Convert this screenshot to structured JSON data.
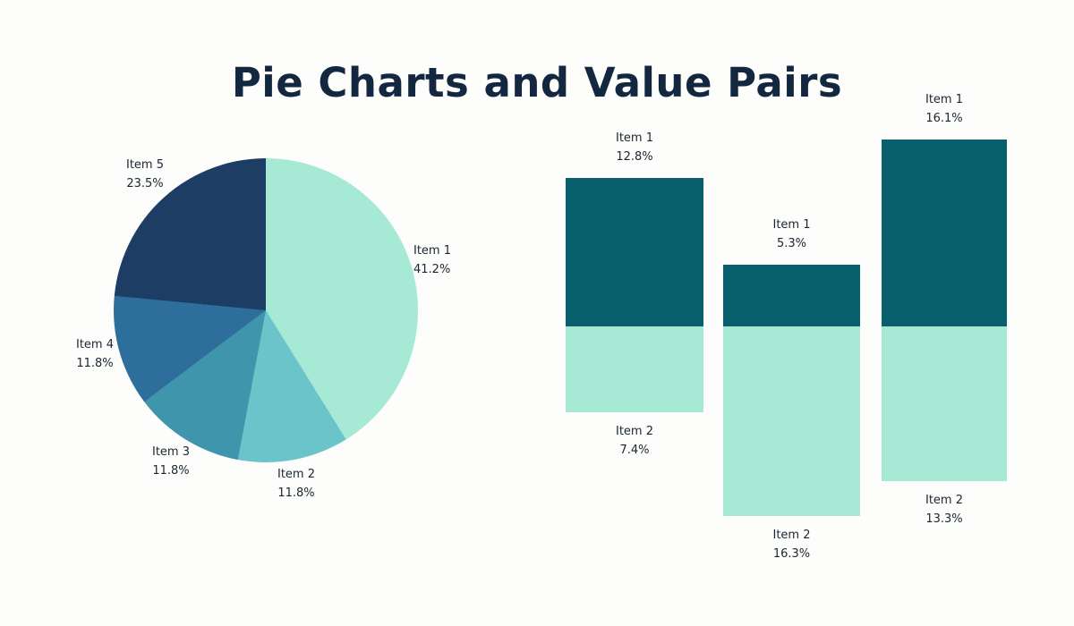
{
  "page": {
    "title": "Pie Charts and Value Pairs"
  },
  "colors": {
    "background": "#FDFDFB",
    "title_text": "#132840",
    "label_text": "#1A2633"
  },
  "chart_data": [
    {
      "type": "pie",
      "title": "Pie Charts and Value Pairs",
      "unit": "%",
      "start_angle_deg": 0,
      "direction": "clockwise",
      "legend": "none",
      "labels_position": "outside",
      "slices": [
        {
          "label": "Item 1",
          "value": 41.2,
          "display": "41.2%",
          "color": "#A6E9D5"
        },
        {
          "label": "Item 2",
          "value": 11.8,
          "display": "11.8%",
          "color": "#6AC4C9"
        },
        {
          "label": "Item 3",
          "value": 11.8,
          "display": "11.8%",
          "color": "#3F96AC"
        },
        {
          "label": "Item 4",
          "value": 11.8,
          "display": "11.8%",
          "color": "#2E6E9C"
        },
        {
          "label": "Item 5",
          "value": 23.5,
          "display": "23.5%",
          "color": "#1E3D64"
        }
      ]
    },
    {
      "type": "bar",
      "subtype": "stacked-value-pairs",
      "orientation": "vertical",
      "unit": "%",
      "legend": "none",
      "axes": "none",
      "colors": {
        "top": "#08606C",
        "bottom": "#A6E9D5"
      },
      "columns": [
        {
          "top": {
            "label": "Item 1",
            "value": 12.8,
            "display": "12.8%"
          },
          "bottom": {
            "label": "Item 2",
            "value": 7.4,
            "display": "7.4%"
          }
        },
        {
          "top": {
            "label": "Item 1",
            "value": 5.3,
            "display": "5.3%"
          },
          "bottom": {
            "label": "Item 2",
            "value": 16.3,
            "display": "16.3%"
          }
        },
        {
          "top": {
            "label": "Item 1",
            "value": 16.1,
            "display": "16.1%"
          },
          "bottom": {
            "label": "Item 2",
            "value": 13.3,
            "display": "13.3%"
          }
        }
      ]
    }
  ]
}
